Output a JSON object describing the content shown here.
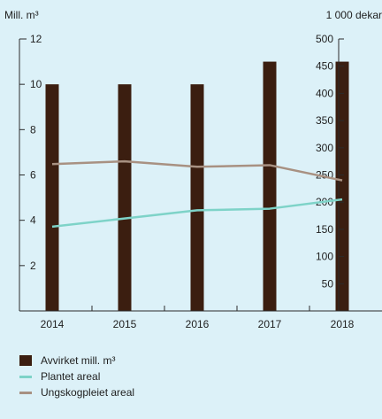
{
  "colors": {
    "background": "#dcf1f8",
    "bar": "#3b1e10",
    "line_planted": "#7ed3c8",
    "line_thinning": "#a89182",
    "axis": "#2b2b2b"
  },
  "chart_data": {
    "type": "bar+line",
    "categories": [
      "2014",
      "2015",
      "2016",
      "2017",
      "2018"
    ],
    "left_axis": {
      "unit_label": "Mill. m³",
      "ylim": [
        0,
        12
      ],
      "ticks": [
        "2",
        "4",
        "6",
        "8",
        "10",
        "12"
      ]
    },
    "right_axis": {
      "unit_label": "1 000 dekar",
      "ylim": [
        0,
        500
      ],
      "ticks": [
        "50",
        "100",
        "150",
        "200",
        "250",
        "300",
        "350",
        "400",
        "450",
        "500"
      ]
    },
    "series": [
      {
        "name": "Avvirket mill. m³",
        "type": "bar",
        "axis": "left",
        "values": [
          10,
          10,
          10,
          11,
          11
        ]
      },
      {
        "name": "Plantet areal",
        "type": "line",
        "axis": "right",
        "values": [
          155,
          170,
          185,
          188,
          205
        ]
      },
      {
        "name": "Ungskogpleiet areal",
        "type": "line",
        "axis": "right",
        "values": [
          270,
          275,
          265,
          268,
          240
        ]
      }
    ],
    "legend_position": "bottom-left",
    "grid": false
  }
}
